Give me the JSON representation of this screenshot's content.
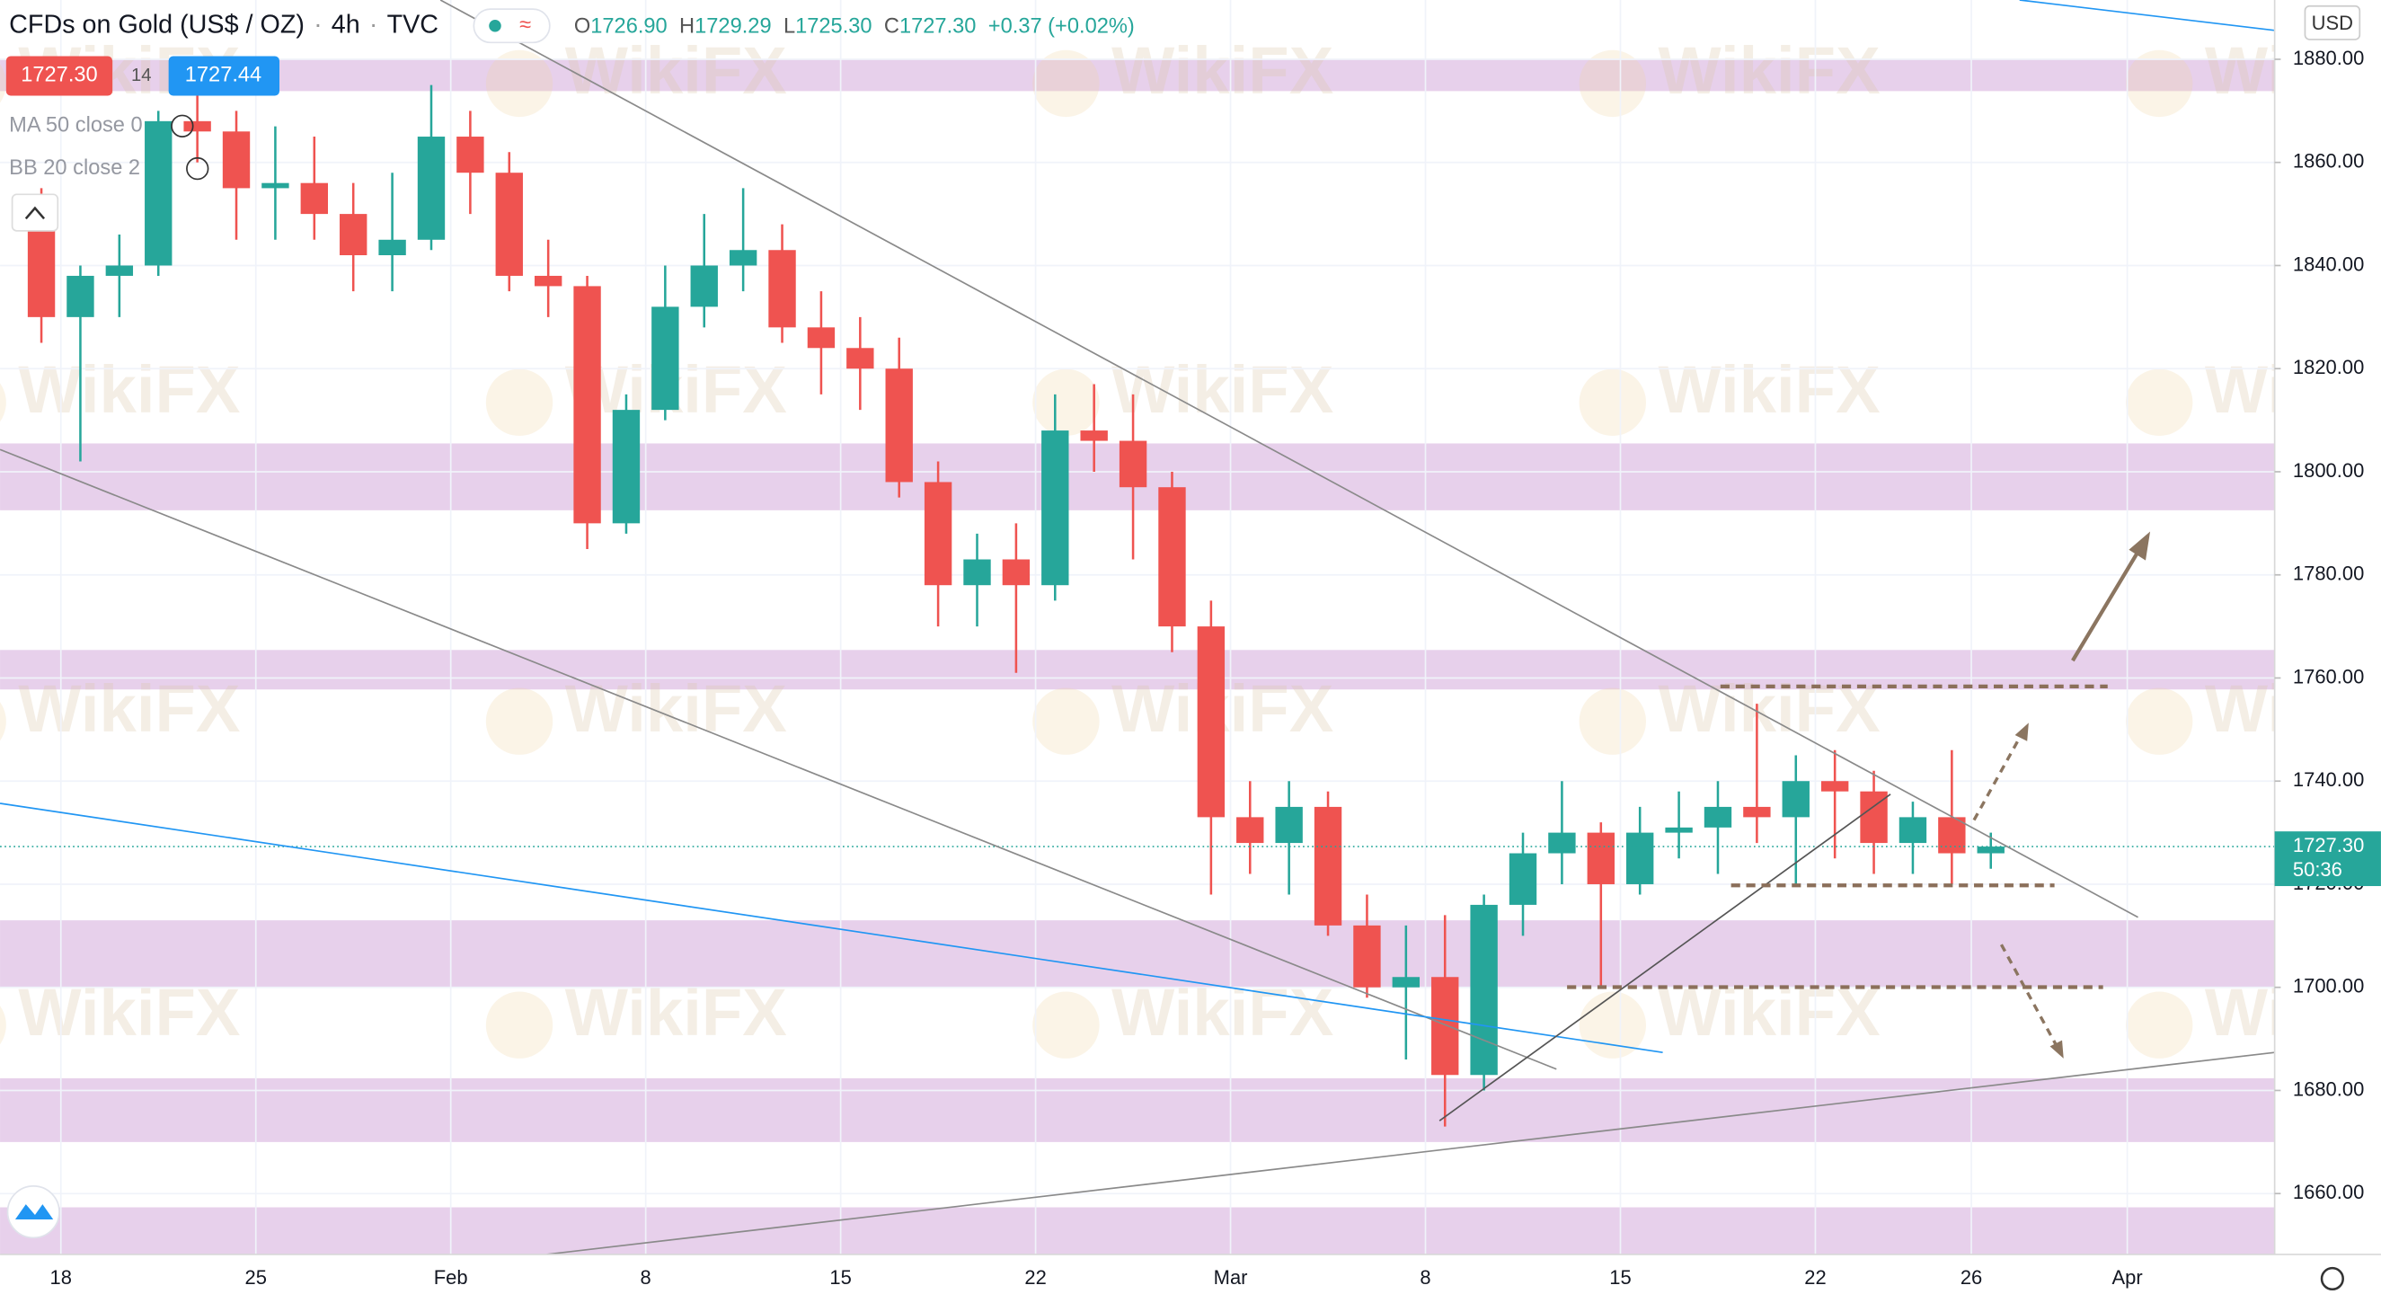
{
  "header": {
    "symbol": "CFDs on Gold (US$ / OZ)",
    "interval": "4h",
    "source": "TVC",
    "quote": {
      "open_label": "O",
      "open": "1726.90",
      "high_label": "H",
      "high": "1729.29",
      "low_label": "L",
      "low": "1725.30",
      "close_label": "C",
      "close": "1727.30",
      "change": "+0.37 (+0.02%)"
    }
  },
  "order_panel": {
    "sell": "1727.30",
    "spread": "14",
    "buy": "1727.44"
  },
  "indicators": [
    "MA 50 close 0",
    "BB 20 close 2"
  ],
  "watermark": "WikiFX",
  "chart_data": {
    "type": "candlestick",
    "currency": "USD",
    "x": [
      -1,
      0,
      1,
      2,
      3,
      4,
      5,
      6,
      7,
      8,
      9,
      10,
      11,
      12,
      13,
      14,
      15,
      16,
      17,
      18,
      19,
      20,
      21,
      22,
      23,
      24,
      25,
      26,
      27,
      28,
      29,
      30,
      31,
      32,
      33,
      34,
      35,
      36,
      37,
      38,
      39,
      40,
      41,
      42,
      43,
      44,
      45,
      46,
      47,
      48,
      49
    ],
    "open": [
      1850,
      1830,
      1838,
      1840,
      1868,
      1866,
      1855,
      1856,
      1850,
      1842,
      1845,
      1865,
      1858,
      1838,
      1836,
      1790,
      1812,
      1832,
      1840,
      1843,
      1828,
      1824,
      1820,
      1798,
      1778,
      1783,
      1778,
      1808,
      1806,
      1797,
      1770,
      1733,
      1728,
      1735,
      1712,
      1700,
      1702,
      1683,
      1716,
      1726,
      1730,
      1720,
      1730,
      1731,
      1735,
      1733,
      1740,
      1738,
      1728,
      1733,
      1726
    ],
    "high": [
      1855,
      1840,
      1846,
      1870,
      1875,
      1870,
      1867,
      1865,
      1856,
      1858,
      1875,
      1870,
      1862,
      1845,
      1838,
      1815,
      1840,
      1850,
      1855,
      1848,
      1835,
      1830,
      1826,
      1802,
      1788,
      1790,
      1815,
      1817,
      1815,
      1800,
      1775,
      1740,
      1740,
      1738,
      1718,
      1712,
      1714,
      1718,
      1730,
      1740,
      1732,
      1735,
      1738,
      1740,
      1755,
      1745,
      1746,
      1742,
      1736,
      1746,
      1730
    ],
    "low": [
      1825,
      1802,
      1830,
      1838,
      1860,
      1845,
      1845,
      1845,
      1835,
      1835,
      1843,
      1850,
      1835,
      1830,
      1785,
      1788,
      1810,
      1828,
      1835,
      1825,
      1815,
      1812,
      1795,
      1770,
      1770,
      1761,
      1775,
      1800,
      1783,
      1765,
      1718,
      1722,
      1718,
      1710,
      1698,
      1686,
      1673,
      1680,
      1710,
      1720,
      1700,
      1718,
      1725,
      1722,
      1728,
      1720,
      1725,
      1722,
      1722,
      1720,
      1723
    ],
    "close": [
      1830,
      1838,
      1840,
      1868,
      1866,
      1855,
      1856,
      1850,
      1842,
      1845,
      1865,
      1858,
      1838,
      1836,
      1790,
      1812,
      1832,
      1840,
      1843,
      1828,
      1824,
      1820,
      1798,
      1778,
      1783,
      1778,
      1808,
      1806,
      1797,
      1770,
      1733,
      1728,
      1735,
      1712,
      1700,
      1702,
      1683,
      1716,
      1726,
      1730,
      1720,
      1730,
      1731,
      1735,
      1733,
      1740,
      1738,
      1728,
      1733,
      1726,
      1727.3
    ],
    "xlim": [
      -1.56,
      56.78
    ],
    "xticks": [
      {
        "value": 0,
        "label": "18"
      },
      {
        "value": 5,
        "label": "25"
      },
      {
        "value": 10,
        "label": "Feb"
      },
      {
        "value": 15,
        "label": "8"
      },
      {
        "value": 20,
        "label": "15"
      },
      {
        "value": 25,
        "label": "22"
      },
      {
        "value": 30,
        "label": "Mar"
      },
      {
        "value": 35,
        "label": "8"
      },
      {
        "value": 40,
        "label": "15"
      },
      {
        "value": 45,
        "label": "22"
      },
      {
        "value": 49,
        "label": "26"
      },
      {
        "value": 53,
        "label": "Apr"
      }
    ],
    "ylim": [
      1648.2,
      1891.5
    ],
    "yticks": [
      {
        "value": 1660,
        "label": "1660.00"
      },
      {
        "value": 1680,
        "label": "1680.00"
      },
      {
        "value": 1700,
        "label": "1700.00"
      },
      {
        "value": 1720,
        "label": "1720.00"
      },
      {
        "value": 1740,
        "label": "1740.00"
      },
      {
        "value": 1760,
        "label": "1760.00"
      },
      {
        "value": 1780,
        "label": "1780.00"
      },
      {
        "value": 1800,
        "label": "1800.00"
      },
      {
        "value": 1820,
        "label": "1820.00"
      },
      {
        "value": 1840,
        "label": "1840.00"
      },
      {
        "value": 1860,
        "label": "1860.00"
      },
      {
        "value": 1880,
        "label": "1880.00"
      }
    ],
    "last_price": 1727.3,
    "last_price_label": "1727.30",
    "countdown": "50:36",
    "up_color": "#26a69a",
    "down_color": "#ef5350"
  }
}
